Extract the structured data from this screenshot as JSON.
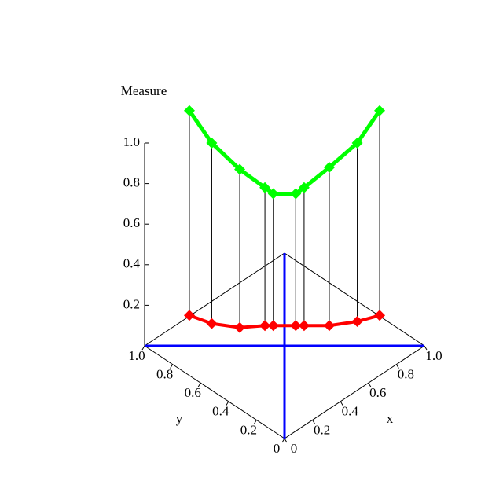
{
  "chart_data": {
    "type": "line3d",
    "zlabel": "Measure",
    "xlabel": "x",
    "ylabel": "y",
    "x": [
      0.16,
      0.24,
      0.34,
      0.43,
      0.46,
      0.54,
      0.57,
      0.66,
      0.76,
      0.84
    ],
    "y": [
      0.84,
      0.76,
      0.66,
      0.57,
      0.54,
      0.46,
      0.43,
      0.34,
      0.24,
      0.16
    ],
    "series": [
      {
        "color": "#00ff00",
        "values": [
          1.16,
          1.0,
          0.87,
          0.78,
          0.75,
          0.75,
          0.78,
          0.88,
          1.0,
          1.16
        ]
      },
      {
        "color": "#ff0000",
        "values": [
          0.15,
          0.11,
          0.09,
          0.1,
          0.1,
          0.1,
          0.1,
          0.1,
          0.12,
          0.15
        ]
      }
    ],
    "guide_color": "#0000ff",
    "xlim": [
      0,
      1
    ],
    "ylim": [
      0,
      1
    ],
    "zlim": [
      0,
      1
    ],
    "xticks": [
      0,
      0.2,
      0.4,
      0.6,
      0.8,
      {
        "value": 1,
        "label": "1.0"
      }
    ],
    "yticks": [
      0,
      0.2,
      0.4,
      0.6,
      0.8,
      {
        "value": 1,
        "label": "1.0"
      }
    ],
    "zticks": [
      0.2,
      0.4,
      0.6,
      0.8,
      {
        "value": 1,
        "label": "1.0"
      }
    ]
  }
}
